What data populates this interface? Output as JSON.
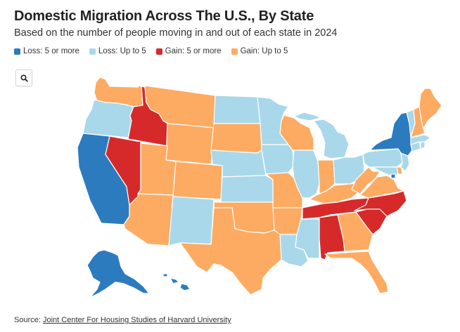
{
  "header": {
    "title": "Domestic Migration Across The U.S., By State",
    "subtitle": "Based on the number of people moving in and out of each state in 2024"
  },
  "legend": [
    {
      "key": "loss5",
      "label": "Loss: 5 or more",
      "color": "#2c7bbf"
    },
    {
      "key": "loss",
      "label": "Loss: Up to 5",
      "color": "#a9d8ea"
    },
    {
      "key": "gain5",
      "label": "Gain: 5 or more",
      "color": "#d62a2a"
    },
    {
      "key": "gain",
      "label": "Gain: Up to 5",
      "color": "#fdab62"
    }
  ],
  "toolbar": {
    "search_icon": "search-icon"
  },
  "states": {
    "WA": "gain",
    "OR": "loss",
    "CA": "loss5",
    "ID": "gain5",
    "NV": "gain5",
    "MT": "gain",
    "WY": "gain",
    "UT": "gain",
    "AZ": "gain",
    "CO": "gain",
    "NM": "loss",
    "ND": "loss",
    "SD": "gain",
    "NE": "loss",
    "KS": "loss",
    "OK": "gain",
    "TX": "gain",
    "MN": "loss",
    "IA": "loss",
    "MO": "gain",
    "AR": "gain",
    "LA": "loss",
    "WI": "gain",
    "IL": "loss",
    "MS": "loss",
    "MI": "loss",
    "IN": "gain",
    "OH": "loss",
    "KY": "gain",
    "TN": "gain5",
    "AL": "gain5",
    "GA": "gain",
    "FL": "gain",
    "SC": "gain5",
    "NC": "gain5",
    "VA": "gain",
    "WV": "gain",
    "PA": "loss",
    "NY": "loss5",
    "ME": "gain",
    "NH": "gain",
    "VT": "loss",
    "MA": "loss",
    "CT": "loss",
    "RI": "loss",
    "NJ": "loss",
    "DE": "gain",
    "MD": "loss",
    "DC": "loss5",
    "AK": "loss5",
    "HI": "loss5"
  },
  "source": {
    "prefix": "Source: ",
    "link_text": "Joint Center For Housing Studies of Harvard University"
  }
}
